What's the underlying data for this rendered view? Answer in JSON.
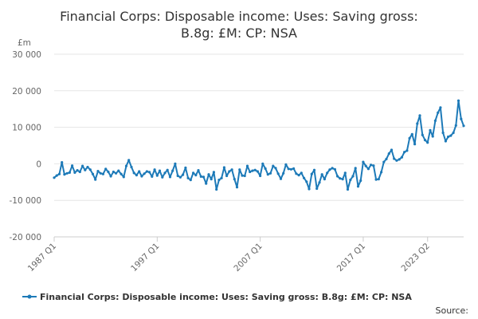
{
  "chart_data": {
    "type": "line",
    "title_line1": "Financial Corps: Disposable income: Uses: Saving gross:",
    "title_line2": "B.8g: £M: CP: NSA",
    "ylabel": "£m",
    "xlabel": "",
    "ylim": [
      -20000,
      30000
    ],
    "y_ticks": [
      30000,
      20000,
      10000,
      0,
      -10000,
      -20000
    ],
    "y_tick_labels": [
      "30 000",
      "20 000",
      "10 000",
      "0",
      "-10 000",
      "-20 000"
    ],
    "x_tick_labels": [
      "1987 Q1",
      "1997 Q1",
      "2007 Q1",
      "2017 Q1",
      "2023 Q2"
    ],
    "x_tick_indices": [
      0,
      40,
      80,
      120,
      145
    ],
    "legend_placement": "bottom-center",
    "grid": true,
    "series": [
      {
        "name": "Financial Corps: Disposable income: Uses: Saving gross: B.8g: £M: CP: NSA",
        "color": "#1d7ab8",
        "values": [
          -3800,
          -3200,
          -2800,
          400,
          -2900,
          -2600,
          -2400,
          -500,
          -2400,
          -1800,
          -2200,
          -600,
          -1700,
          -900,
          -1600,
          -2800,
          -4300,
          -2000,
          -2600,
          -2800,
          -1400,
          -2200,
          -3400,
          -2200,
          -2600,
          -1900,
          -2800,
          -3600,
          -600,
          1000,
          -900,
          -2500,
          -3100,
          -2100,
          -3400,
          -2700,
          -2100,
          -2300,
          -3500,
          -1600,
          -3200,
          -1900,
          -3700,
          -2500,
          -1700,
          -3600,
          -1900,
          0,
          -3300,
          -3700,
          -3000,
          -1100,
          -3900,
          -4400,
          -2500,
          -3100,
          -1800,
          -3500,
          -3600,
          -5400,
          -2900,
          -4200,
          -2300,
          -7000,
          -4400,
          -3900,
          -1000,
          -3300,
          -2100,
          -1600,
          -4200,
          -6400,
          -1600,
          -3200,
          -3300,
          -600,
          -2200,
          -1900,
          -1700,
          -2100,
          -3300,
          0,
          -1300,
          -2900,
          -2600,
          -600,
          -1200,
          -2700,
          -4100,
          -2600,
          -200,
          -1400,
          -1500,
          -1300,
          -2700,
          -3100,
          -2500,
          -3900,
          -4900,
          -6900,
          -2800,
          -1700,
          -6800,
          -5100,
          -2900,
          -4200,
          -2500,
          -1600,
          -1200,
          -1500,
          -3400,
          -4000,
          -4200,
          -2500,
          -7000,
          -4400,
          -3400,
          -1200,
          -6200,
          -4600,
          500,
          -600,
          -1400,
          -300,
          -500,
          -4300,
          -4200,
          -2300,
          500,
          1300,
          2800,
          3800,
          1400,
          900,
          1200,
          1800,
          3200,
          3600,
          7000,
          8100,
          5400,
          11000,
          13200,
          7900,
          6500,
          5800,
          9200,
          7500,
          11800,
          14000,
          15400,
          8500,
          6200,
          7400,
          7700,
          8500,
          10500,
          17300,
          12300,
          10400
        ]
      }
    ]
  },
  "legend": {
    "label": "Financial Corps: Disposable income: Uses: Saving gross: B.8g: £M: CP: NSA"
  },
  "source": {
    "label": "Source:"
  }
}
